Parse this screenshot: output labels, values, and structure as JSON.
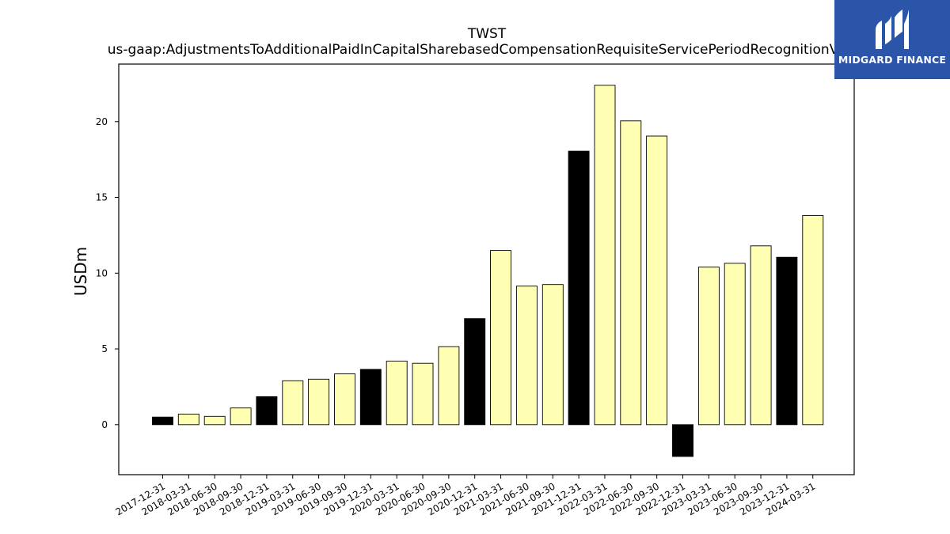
{
  "chart_data": {
    "type": "bar",
    "title": "TWST",
    "subtitle": "us-gaap:AdjustmentsToAdditionalPaidInCapitalSharebasedCompensationRequisiteServicePeriodRecognitionValue",
    "xlabel": "",
    "ylabel": "USDm",
    "ylim": [
      -3.3,
      23.8
    ],
    "yticks": [
      0,
      5,
      10,
      15,
      20
    ],
    "grid": false,
    "categories": [
      "2017-12-31",
      "2018-03-31",
      "2018-06-30",
      "2018-09-30",
      "2018-12-31",
      "2019-03-31",
      "2019-06-30",
      "2019-09-30",
      "2019-12-31",
      "2020-03-31",
      "2020-06-30",
      "2020-09-30",
      "2020-12-31",
      "2021-03-31",
      "2021-06-30",
      "2021-09-30",
      "2021-12-31",
      "2022-03-31",
      "2022-06-30",
      "2022-09-30",
      "2022-12-31",
      "2023-03-31",
      "2023-06-30",
      "2023-09-30",
      "2023-12-31",
      "2024-03-31"
    ],
    "values": [
      0.5,
      0.7,
      0.55,
      1.1,
      1.85,
      2.9,
      3.0,
      3.35,
      3.65,
      4.2,
      4.05,
      5.15,
      7.0,
      11.5,
      9.15,
      9.25,
      18.05,
      22.4,
      20.05,
      19.05,
      -2.1,
      10.4,
      10.65,
      11.8,
      11.05,
      13.8
    ],
    "colors": {
      "annual": "#000000",
      "quarterly": "#ffffb3",
      "edge": "#000000"
    },
    "annual_flags": [
      1,
      0,
      0,
      0,
      1,
      0,
      0,
      0,
      1,
      0,
      0,
      0,
      1,
      0,
      0,
      0,
      1,
      0,
      0,
      0,
      1,
      0,
      0,
      0,
      1,
      0
    ]
  },
  "logo": {
    "text": "MIDGARD FINANCE",
    "color": "#2b55a8"
  }
}
